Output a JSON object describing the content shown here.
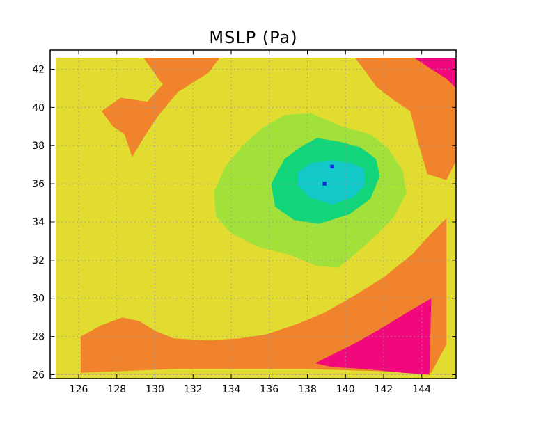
{
  "chart_data": {
    "type": "heatmap",
    "title": "MSLP (Pa)",
    "xlabel": "",
    "ylabel": "",
    "xlim": [
      124.5,
      145.8
    ],
    "ylim": [
      25.8,
      43.0
    ],
    "x_ticks": [
      126,
      128,
      130,
      132,
      134,
      136,
      138,
      140,
      142,
      144
    ],
    "y_ticks": [
      26,
      28,
      30,
      32,
      34,
      36,
      38,
      40,
      42
    ],
    "grid": true,
    "colors": {
      "magenta": "#f0087c",
      "orange": "#f0832c",
      "yellow": "#e2dc30",
      "lightgreen": "#a2e13a",
      "green": "#12d47a",
      "cyan": "#12c8c8",
      "blue": "#1428e6"
    },
    "regions": [
      {
        "level": "yellow",
        "lonlat": [
          [
            124.8,
            42.6
          ],
          [
            145.8,
            42.6
          ],
          [
            145.8,
            25.8
          ],
          [
            124.8,
            25.8
          ]
        ]
      },
      {
        "level": "orange",
        "lonlat": [
          [
            129.4,
            42.6
          ],
          [
            133.4,
            42.6
          ],
          [
            132.8,
            41.8
          ],
          [
            131.2,
            40.8
          ],
          [
            130.2,
            39.6
          ],
          [
            129.4,
            38.4
          ],
          [
            128.8,
            37.4
          ],
          [
            128.4,
            38.6
          ],
          [
            127.8,
            39.0
          ],
          [
            127.2,
            39.8
          ],
          [
            128.2,
            40.5
          ],
          [
            129.6,
            40.3
          ],
          [
            130.4,
            41.2
          ]
        ]
      },
      {
        "level": "orange",
        "lonlat": [
          [
            140.5,
            42.6
          ],
          [
            145.8,
            42.6
          ],
          [
            145.8,
            37.2
          ],
          [
            145.3,
            36.2
          ],
          [
            144.3,
            36.5
          ],
          [
            143.8,
            38.2
          ],
          [
            143.4,
            39.8
          ],
          [
            142.5,
            40.4
          ],
          [
            141.6,
            41.1
          ],
          [
            141.1,
            41.8
          ]
        ]
      },
      {
        "level": "magenta",
        "lonlat": [
          [
            143.6,
            42.6
          ],
          [
            145.8,
            42.6
          ],
          [
            145.8,
            41.0
          ],
          [
            145.3,
            41.5
          ],
          [
            144.5,
            42.0
          ]
        ]
      },
      {
        "level": "orange",
        "lonlat": [
          [
            126.1,
            28.0
          ],
          [
            127.2,
            28.6
          ],
          [
            128.3,
            29.0
          ],
          [
            129.2,
            28.8
          ],
          [
            130.0,
            28.3
          ],
          [
            131.0,
            27.9
          ],
          [
            132.8,
            27.8
          ],
          [
            134.4,
            27.9
          ],
          [
            135.8,
            28.1
          ],
          [
            137.3,
            28.6
          ],
          [
            138.8,
            29.2
          ],
          [
            140.4,
            30.1
          ],
          [
            142.0,
            31.1
          ],
          [
            143.5,
            32.3
          ],
          [
            144.5,
            33.4
          ],
          [
            145.3,
            34.2
          ],
          [
            145.3,
            27.6
          ],
          [
            144.5,
            26.1
          ],
          [
            138.0,
            26.3
          ],
          [
            131.0,
            26.3
          ],
          [
            126.1,
            26.1
          ]
        ]
      },
      {
        "level": "magenta",
        "lonlat": [
          [
            138.4,
            26.6
          ],
          [
            139.2,
            27.0
          ],
          [
            140.6,
            27.7
          ],
          [
            142.0,
            28.5
          ],
          [
            143.3,
            29.3
          ],
          [
            144.5,
            30.0
          ],
          [
            144.4,
            26.0
          ],
          [
            143.0,
            26.1
          ],
          [
            141.0,
            26.3
          ],
          [
            139.3,
            26.4
          ]
        ]
      },
      {
        "level": "lightgreen",
        "lonlat": [
          [
            135.6,
            38.9
          ],
          [
            136.8,
            39.6
          ],
          [
            138.2,
            39.7
          ],
          [
            139.8,
            39.0
          ],
          [
            141.3,
            38.6
          ],
          [
            142.2,
            37.9
          ],
          [
            143.0,
            36.7
          ],
          [
            143.2,
            35.5
          ],
          [
            142.5,
            34.2
          ],
          [
            141.5,
            33.2
          ],
          [
            140.6,
            32.4
          ],
          [
            139.6,
            31.6
          ],
          [
            138.5,
            31.7
          ],
          [
            137.0,
            32.3
          ],
          [
            135.4,
            32.7
          ],
          [
            134.0,
            33.4
          ],
          [
            133.2,
            34.3
          ],
          [
            133.1,
            35.6
          ],
          [
            133.7,
            36.9
          ],
          [
            134.6,
            38.0
          ]
        ]
      },
      {
        "level": "green",
        "lonlat": [
          [
            136.8,
            37.3
          ],
          [
            137.6,
            37.9
          ],
          [
            138.5,
            38.4
          ],
          [
            139.7,
            38.2
          ],
          [
            140.8,
            37.9
          ],
          [
            141.6,
            37.3
          ],
          [
            141.8,
            36.4
          ],
          [
            141.3,
            35.2
          ],
          [
            140.2,
            34.4
          ],
          [
            138.6,
            33.9
          ],
          [
            137.3,
            34.1
          ],
          [
            136.3,
            34.8
          ],
          [
            136.1,
            36.0
          ]
        ]
      },
      {
        "level": "cyan",
        "lonlat": [
          [
            137.5,
            36.6
          ],
          [
            138.2,
            37.1
          ],
          [
            139.3,
            37.2
          ],
          [
            140.2,
            37.1
          ],
          [
            141.0,
            36.8
          ],
          [
            141.0,
            35.9
          ],
          [
            140.4,
            35.3
          ],
          [
            139.3,
            34.9
          ],
          [
            138.1,
            35.3
          ],
          [
            137.5,
            35.9
          ]
        ]
      },
      {
        "level": "blue",
        "lonlat": [
          [
            139.2,
            37.0
          ],
          [
            139.4,
            37.0
          ],
          [
            139.4,
            36.8
          ],
          [
            139.2,
            36.8
          ]
        ]
      },
      {
        "level": "blue",
        "lonlat": [
          [
            138.8,
            36.1
          ],
          [
            139.0,
            36.1
          ],
          [
            139.0,
            35.9
          ],
          [
            138.8,
            35.9
          ]
        ]
      }
    ]
  }
}
